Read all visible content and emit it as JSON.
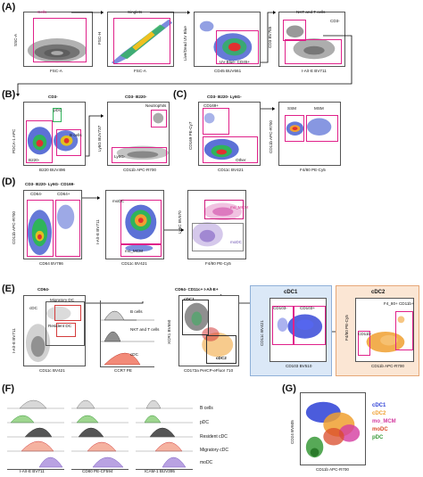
{
  "panels": {
    "A": "(A)",
    "B": "(B)",
    "C": "(C)",
    "D": "(D)",
    "E": "(E)",
    "F": "(F)",
    "G": "(G)"
  },
  "A": {
    "p1": {
      "y": "SSC-A",
      "x": "FSC-A",
      "gate": "Cells"
    },
    "p2": {
      "y": "FSC-H",
      "x": "FSC-A",
      "gate": "Singlets"
    },
    "p3": {
      "y": "Live/Dead UV Blue",
      "x": "CD45 BUV661",
      "gate": "UV Blue- CD45+"
    },
    "p4": {
      "y": "CD3 BV785",
      "x": "I-A/I-E BV711",
      "gate1": "NKT and T cells",
      "gate2": "CD3-"
    }
  },
  "B": {
    "p1": {
      "title": "CD3-",
      "y": "PDCA-1 APC",
      "x": "B220 BUV496",
      "g1": "pDC",
      "g2": "B cells",
      "g3": "B220-"
    },
    "p2": {
      "title": "CD3- B220-",
      "y": "Ly6G BUV737",
      "x": "CD11b APC-R700",
      "g1": "Neutrophils",
      "g2": "Ly6G-"
    }
  },
  "C": {
    "p1": {
      "title": "CD3- B220- Ly6G-",
      "y": "CD169 PE-Cy7",
      "x": "CD11c BV421",
      "g1": "CD169+",
      "g2": "Other"
    },
    "p2": {
      "y": "CD11b APC-R700",
      "x": "F4/80 PE-Cy5",
      "g1": "SSM",
      "g2": "MSM"
    }
  },
  "D": {
    "p1": {
      "title": "CD3- B220- Ly6G- CD169-",
      "y": "CD11b APC-R700",
      "x": "CD64 BV786",
      "g1": "CD64-",
      "g2": "CD64+"
    },
    "p2": {
      "y": "I-A/I-E BV711",
      "x": "CD11c BV421",
      "g1": "moDC",
      "g2": "mo_MCM"
    },
    "p3": {
      "y": "Ly6C BV570",
      "x": "F4/80 PE-Cy5",
      "g1": "mo_MCM",
      "g2": "moDC"
    }
  },
  "E": {
    "p1": {
      "title": "CD64-",
      "y": "I-A/I-E BV711",
      "x": "CD11c BV421",
      "g1": "cDC",
      "g2": "Migratory DC",
      "g3": "Resident DC"
    },
    "hist": {
      "x": "CCR7 PE",
      "l1": "B cells",
      "l2": "NKT and T cells",
      "l3": "cDC"
    },
    "p3": {
      "title": "CD64- CD11c+ I-A/I-E+",
      "y": "XCR1 BV650",
      "x": "CD172a PerCP-eFluor 710",
      "g1": "cDC1",
      "g2": "cDC2"
    },
    "p4": {
      "box": "cDC1",
      "y": "CD11c BV421",
      "x": "CD103 BV510",
      "g1": "CD103-",
      "g2": "CD103+"
    },
    "p5": {
      "box": "cDC2",
      "y": "F4/80 PE-Cy5",
      "x": "CD11b APC-R700",
      "g1": "F4_80+ CD11b+",
      "g2": "CD11b-"
    }
  },
  "F": {
    "x1": "I-A/I-E BV711",
    "x2": "CD80 PE-CF594",
    "x3": "ICAM-1 BUV395",
    "legend": [
      "B cells",
      "pDC",
      "Resident cDC",
      "Migratory cDC",
      "moDC"
    ]
  },
  "G": {
    "y": "CD24 BV605",
    "x": "CD11b APC-R700",
    "legend": [
      {
        "label": "cDC1",
        "color": "#2c3fd6"
      },
      {
        "label": "cDC2",
        "color": "#f0a030"
      },
      {
        "label": "mo_MCM",
        "color": "#d43ca0"
      },
      {
        "label": "moDC",
        "color": "#d94b2a"
      },
      {
        "label": "pDC",
        "color": "#3a9a3a"
      }
    ]
  }
}
